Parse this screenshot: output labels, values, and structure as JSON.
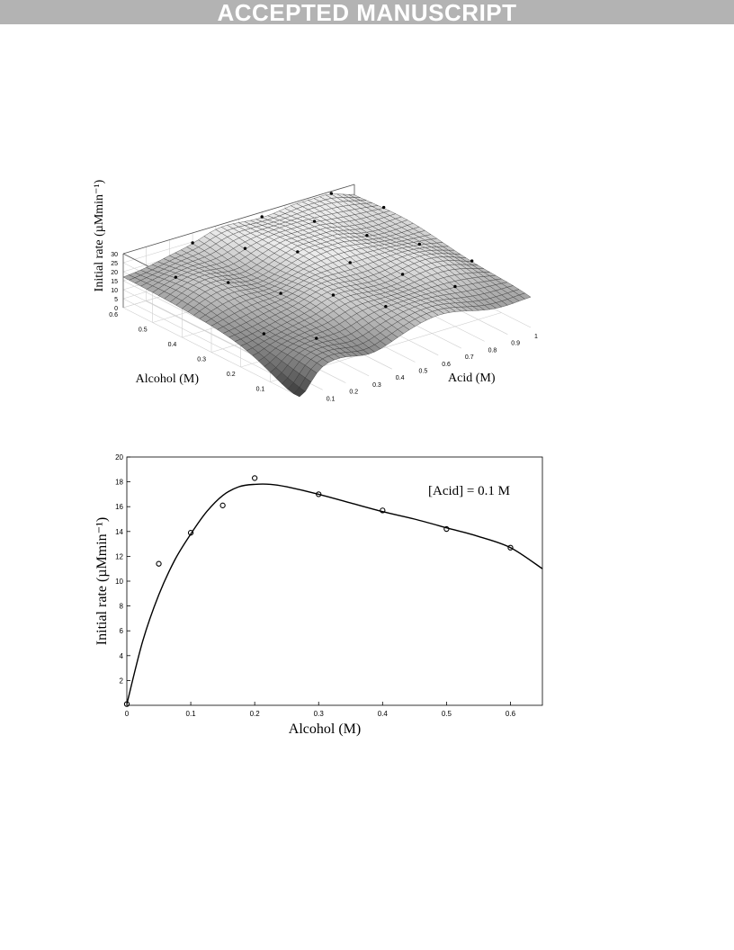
{
  "header": {
    "banner": "ACCEPTED MANUSCRIPT"
  },
  "chart_data": [
    {
      "type": "surface",
      "zlabel": "Initial rate (µMmin⁻¹)",
      "xlabel": "Acid (M)",
      "ylabel": "Alcohol (M)",
      "x_ticks": [
        "0.1",
        "0.2",
        "0.3",
        "0.4",
        "0.5",
        "0.6",
        "0.7",
        "0.8",
        "0.9",
        "1"
      ],
      "y_ticks": [
        "0.1",
        "0.2",
        "0.3",
        "0.4",
        "0.5",
        "0.6"
      ],
      "z_ticks": [
        "0",
        "5",
        "10",
        "15",
        "20",
        "25",
        "30"
      ],
      "xlim": [
        0,
        1
      ],
      "ylim": [
        0,
        0.6
      ],
      "zlim": [
        0,
        30
      ],
      "grid": true,
      "colormap": "gray"
    },
    {
      "type": "scatter",
      "xlabel": "Alcohol (M)",
      "ylabel": "Initial rate (µMmin⁻¹)",
      "annotation": "[Acid] = 0.1 M",
      "xlim": [
        0,
        0.65
      ],
      "ylim": [
        0,
        20
      ],
      "x_ticks": [
        "0",
        "0.1",
        "0.2",
        "0.3",
        "0.4",
        "0.5",
        "0.6"
      ],
      "y_ticks": [
        "2",
        "4",
        "6",
        "8",
        "10",
        "12",
        "14",
        "16",
        "18",
        "20"
      ],
      "points": {
        "x": [
          0,
          0.05,
          0.1,
          0.15,
          0.2,
          0.3,
          0.4,
          0.5,
          0.6
        ],
        "y": [
          0.1,
          11.4,
          13.9,
          16.1,
          18.3,
          17.0,
          15.7,
          14.2,
          12.7
        ]
      },
      "fit": {
        "x": [
          0,
          0.025,
          0.05,
          0.075,
          0.1,
          0.125,
          0.15,
          0.175,
          0.2,
          0.225,
          0.25,
          0.3,
          0.35,
          0.4,
          0.45,
          0.5,
          0.55,
          0.6,
          0.65
        ],
        "y": [
          0.1,
          5.2,
          8.9,
          11.7,
          13.8,
          15.6,
          16.9,
          17.6,
          17.8,
          17.8,
          17.6,
          17.0,
          16.3,
          15.6,
          15.0,
          14.3,
          13.6,
          12.7,
          11.0
        ]
      }
    }
  ]
}
